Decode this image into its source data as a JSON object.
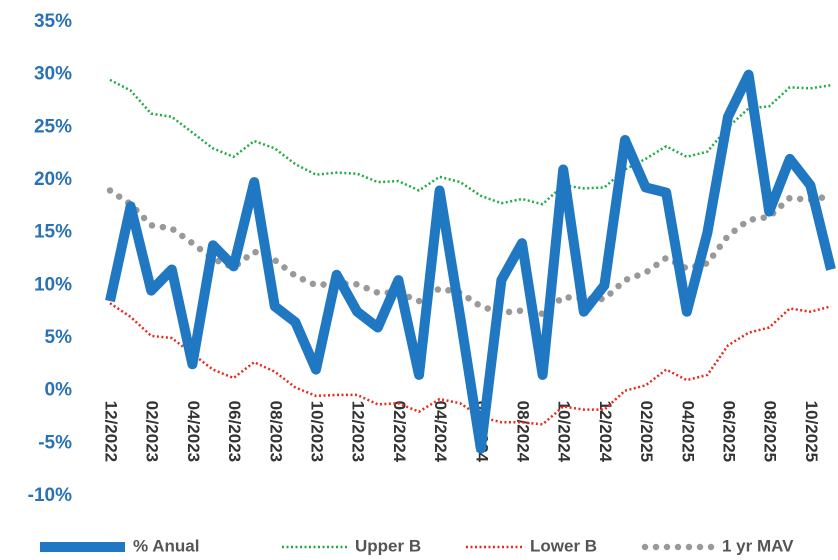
{
  "chart_data": {
    "type": "line",
    "categories": [
      "12/2022",
      null,
      "02/2023",
      null,
      "04/2023",
      null,
      "06/2023",
      null,
      "08/2023",
      null,
      "10/2023",
      null,
      "12/2023",
      null,
      "02/2024",
      null,
      "04/2024",
      null,
      "06/2024",
      null,
      "08/2024",
      null,
      "10/2024",
      null,
      "12/2024",
      null,
      "02/2025",
      null,
      "04/2025",
      null,
      "06/2025",
      null,
      "08/2025",
      null,
      "10/2025",
      null
    ],
    "series": [
      {
        "name": "% Anual",
        "color": "#1f78c1",
        "values": [
          8.5,
          17.5,
          9.5,
          11.5,
          2.5,
          13.8,
          11.8,
          19.8,
          8,
          6.5,
          2,
          11,
          7.5,
          6,
          10.5,
          1.5,
          19,
          7,
          -5.5,
          10.5,
          14,
          1.5,
          21,
          7.5,
          10,
          23.8,
          19.3,
          18.8,
          7.5,
          15,
          26,
          30,
          17,
          22,
          19.5,
          11.5
        ]
      },
      {
        "name": "Upper B",
        "color": "#22aa44",
        "values": [
          29.5,
          28.5,
          26.3,
          26,
          24.5,
          23,
          22.2,
          23.7,
          23,
          21.5,
          20.5,
          20.7,
          20.6,
          19.8,
          19.9,
          19,
          20.3,
          19.8,
          18.5,
          17.8,
          18.2,
          17.7,
          19.5,
          19.2,
          19.3,
          21,
          22,
          23.2,
          22.2,
          22.7,
          25,
          26.8,
          27,
          28.8,
          28.7,
          29
        ]
      },
      {
        "name": "Lower B",
        "color": "#e8291c",
        "values": [
          8.3,
          7,
          5.2,
          5,
          3.5,
          2,
          1.2,
          2.7,
          1.8,
          0.3,
          -0.5,
          -0.4,
          -0.4,
          -1.3,
          -1.2,
          -2,
          -0.8,
          -1.2,
          -2.5,
          -3,
          -3,
          -3.2,
          -1.5,
          -1.8,
          -1.8,
          0,
          0.5,
          2,
          1,
          1.5,
          4.3,
          5.5,
          6,
          7.8,
          7.5,
          8
        ]
      },
      {
        "name": "1 yr MAV",
        "color": "#999999",
        "values": [
          19,
          17.7,
          15.7,
          15.4,
          14,
          12.5,
          11.7,
          13.2,
          12.4,
          10.9,
          10,
          10.2,
          10.1,
          9.3,
          9.3,
          8.5,
          9.7,
          9.3,
          8,
          7.4,
          7.6,
          7.3,
          8.9,
          8.7,
          8.7,
          10.5,
          11.2,
          12.6,
          11.6,
          12.1,
          14.7,
          16.2,
          16.5,
          18.3,
          18.1,
          18.5
        ]
      }
    ],
    "ylim": [
      -10,
      35
    ],
    "yticks": [
      {
        "value": -10,
        "label": "-10%"
      },
      {
        "value": -5,
        "label": "-5%"
      },
      {
        "value": 0,
        "label": "0%"
      },
      {
        "value": 5,
        "label": "5%"
      },
      {
        "value": 10,
        "label": "10%"
      },
      {
        "value": 15,
        "label": "15%"
      },
      {
        "value": 20,
        "label": "20%"
      },
      {
        "value": 25,
        "label": "25%"
      },
      {
        "value": 30,
        "label": "30%"
      },
      {
        "value": 35,
        "label": "35%"
      }
    ],
    "grid": false,
    "legend": "bottom"
  }
}
